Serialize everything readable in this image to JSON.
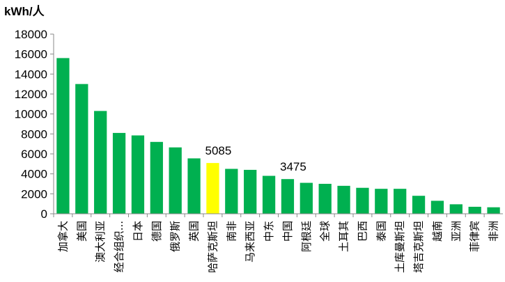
{
  "chart_data": {
    "type": "bar",
    "ylabel": "kWh/人",
    "ylim": [
      0,
      18000
    ],
    "yticks": [
      0,
      2000,
      4000,
      6000,
      8000,
      10000,
      12000,
      14000,
      16000,
      18000
    ],
    "grid": false,
    "categories": [
      "加拿大",
      "美国",
      "澳大利亚",
      "经合组织...",
      "日本",
      "德国",
      "俄罗斯",
      "英国",
      "哈萨克斯坦",
      "南非",
      "马来西亚",
      "中东",
      "中国",
      "阿根廷",
      "全球",
      "土耳其",
      "巴西",
      "泰国",
      "土库曼斯坦",
      "塔吉克斯坦",
      "越南",
      "亚洲",
      "菲律宾",
      "非洲"
    ],
    "values": [
      15600,
      13000,
      10300,
      8100,
      7850,
      7200,
      6650,
      5550,
      5085,
      4500,
      4400,
      3800,
      3475,
      3100,
      3000,
      2800,
      2600,
      2500,
      2500,
      1800,
      1300,
      950,
      700,
      650
    ],
    "colors": {
      "default": "#00b050",
      "highlight": "#ffff00"
    },
    "highlight_index": 8,
    "data_labels": [
      {
        "index": 8,
        "text": "5085"
      },
      {
        "index": 12,
        "text": "3475"
      }
    ]
  }
}
